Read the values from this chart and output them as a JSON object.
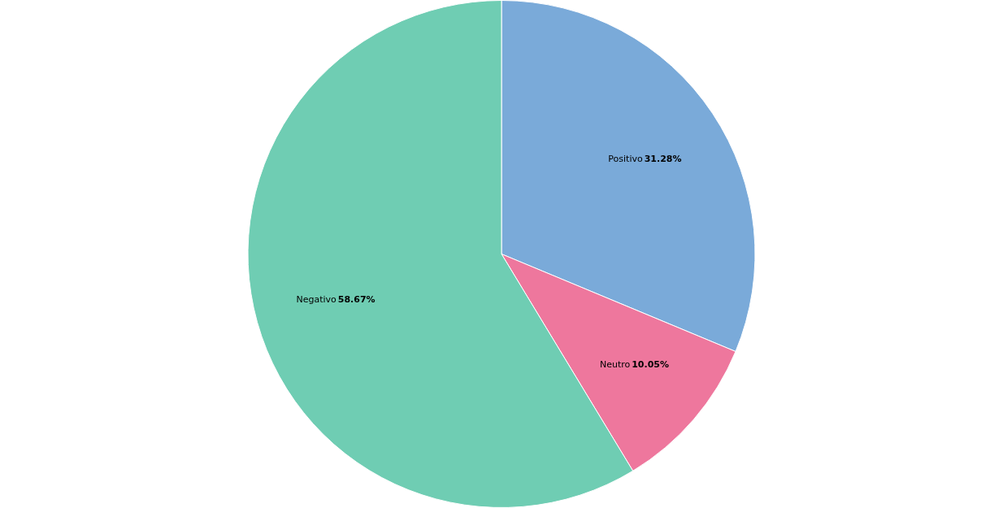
{
  "chart_data": {
    "type": "pie",
    "categories": [
      "Positivo",
      "Neutro",
      "Negativo"
    ],
    "values": [
      31.28,
      10.05,
      58.67
    ],
    "colors": [
      "#7aaad9",
      "#ee779d",
      "#6fcdb3"
    ],
    "value_labels": [
      "31.28%",
      "10.05%",
      "58.67%"
    ],
    "legend": false
  }
}
